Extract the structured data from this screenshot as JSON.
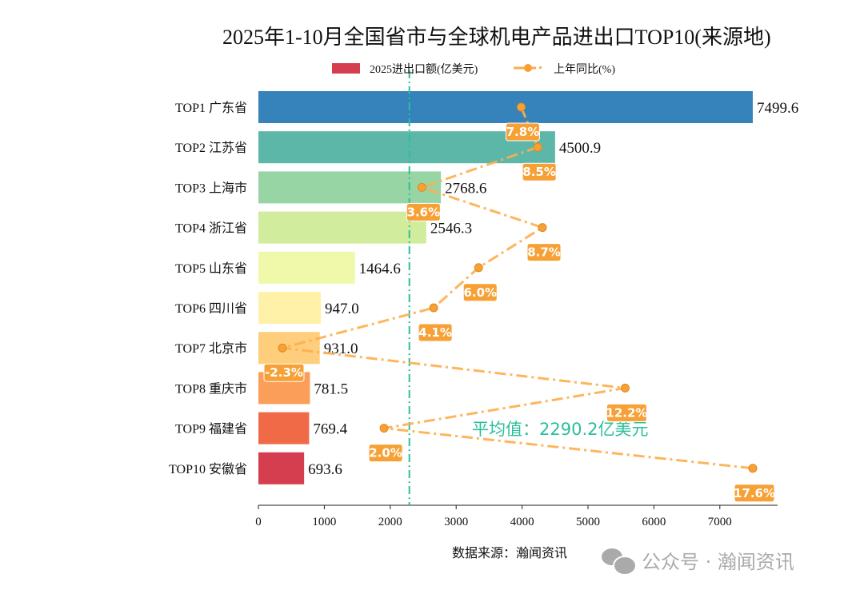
{
  "chart_data": {
    "type": "bar",
    "orientation": "horizontal",
    "title": "2025年1-10月全国省市与全球机电产品进出口TOP10(来源地)",
    "categories": [
      "TOP1 广东省",
      "TOP2 江苏省",
      "TOP3 上海市",
      "TOP4 浙江省",
      "TOP5 山东省",
      "TOP6 四川省",
      "TOP7 北京市",
      "TOP8 重庆市",
      "TOP9 福建省",
      "TOP10 安徽省"
    ],
    "series": [
      {
        "name": "2025进出口额(亿美元)",
        "type": "bar",
        "values": [
          7499.6,
          4500.9,
          2768.6,
          2546.3,
          1464.6,
          947.0,
          931.0,
          781.5,
          769.4,
          693.6
        ],
        "labels": [
          "7499.6",
          "4500.9",
          "2768.6",
          "2546.3",
          "1464.6",
          "947.0",
          "931.0",
          "781.5",
          "769.4",
          "693.6"
        ],
        "colors": [
          "#3682ba",
          "#5cb7a9",
          "#98d5a4",
          "#d0ec9c",
          "#f0f8a9",
          "#fff1a8",
          "#fece7c",
          "#fb9e5a",
          "#f06a48",
          "#d53e4f"
        ]
      },
      {
        "name": "上年同比(%)",
        "type": "line",
        "values": [
          7.8,
          8.5,
          3.6,
          8.7,
          6.0,
          4.1,
          -2.3,
          12.2,
          2.0,
          17.6
        ],
        "labels": [
          "7.8%",
          "8.5%",
          "3.6%",
          "8.7%",
          "6.0%",
          "4.1%",
          "-2.3%",
          "12.2%",
          "2.0%",
          "17.6%"
        ],
        "color": "#fdae4b"
      }
    ],
    "xlim": [
      0,
      7800
    ],
    "xticks": [
      "0",
      "1000",
      "2000",
      "3000",
      "4000",
      "5000",
      "6000",
      "7000"
    ],
    "average": {
      "value": 2290.2,
      "label": "平均值：2290.2亿美元",
      "color": "#2bbf9b"
    },
    "legend": "top-center",
    "grid": false
  },
  "source": "数据来源：瀚闻资讯",
  "watermark": "公众号 · 瀚闻资讯"
}
